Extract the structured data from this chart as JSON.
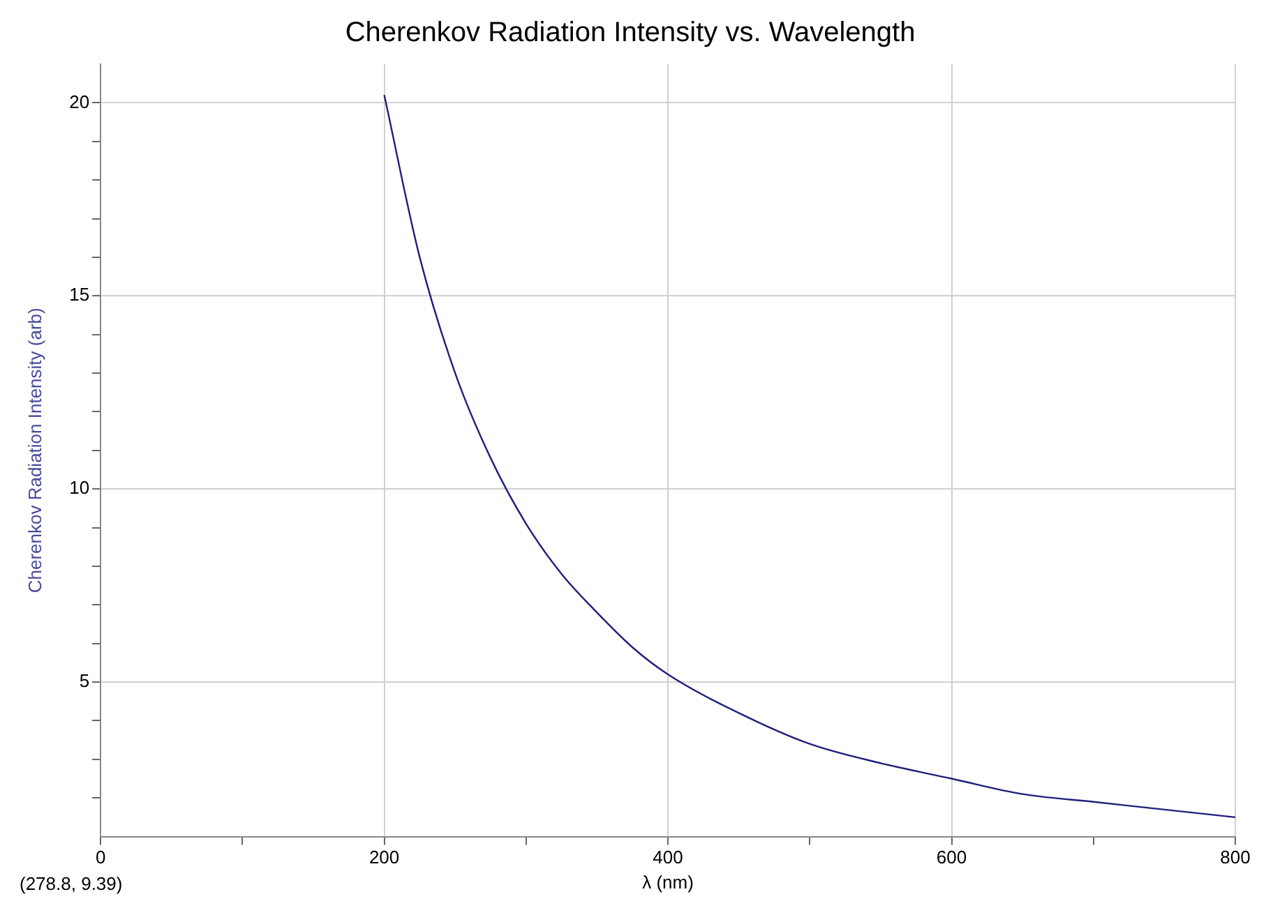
{
  "chart_data": {
    "type": "line",
    "title": "Cherenkov Radiation Intensity vs. Wavelength",
    "xlabel": "λ (nm)",
    "ylabel": "Cherenkov Radiation Intensity (arb)",
    "annotations": [
      "(278.8, 9.39)"
    ],
    "x": [
      200,
      225,
      250,
      275,
      300,
      325,
      350,
      375,
      400,
      450,
      500,
      550,
      600,
      650,
      700,
      750,
      800
    ],
    "series": [
      {
        "color": "#1f1f7a",
        "values": [
          20.2,
          16.0,
          13.0,
          10.8,
          9.1,
          7.8,
          6.8,
          5.9,
          5.2,
          4.2,
          3.4,
          2.9,
          2.5,
          2.1,
          1.9,
          1.7,
          1.5
        ]
      }
    ],
    "xlim": [
      0,
      800
    ],
    "ylim": [
      1,
      21
    ],
    "xticks": [
      0,
      {
        "value": 100,
        "label": null
      },
      200,
      {
        "value": 300,
        "label": null
      },
      400,
      {
        "value": 500,
        "label": null
      },
      600,
      {
        "value": 700,
        "label": null
      },
      800
    ],
    "yticks": [
      {
        "value": 2,
        "label": null
      },
      {
        "value": 3,
        "label": null
      },
      {
        "value": 4,
        "label": null
      },
      5,
      {
        "value": 6,
        "label": null
      },
      {
        "value": 7,
        "label": null
      },
      {
        "value": 8,
        "label": null
      },
      {
        "value": 9,
        "label": null
      },
      10,
      {
        "value": 11,
        "label": null
      },
      {
        "value": 12,
        "label": null
      },
      {
        "value": 13,
        "label": null
      },
      {
        "value": 14,
        "label": null
      },
      15,
      {
        "value": 16,
        "label": null
      },
      {
        "value": 17,
        "label": null
      },
      {
        "value": 18,
        "label": null
      },
      {
        "value": 19,
        "label": null
      },
      20
    ],
    "grid": true,
    "legend": false,
    "marker": "none",
    "line_style": "solid"
  }
}
